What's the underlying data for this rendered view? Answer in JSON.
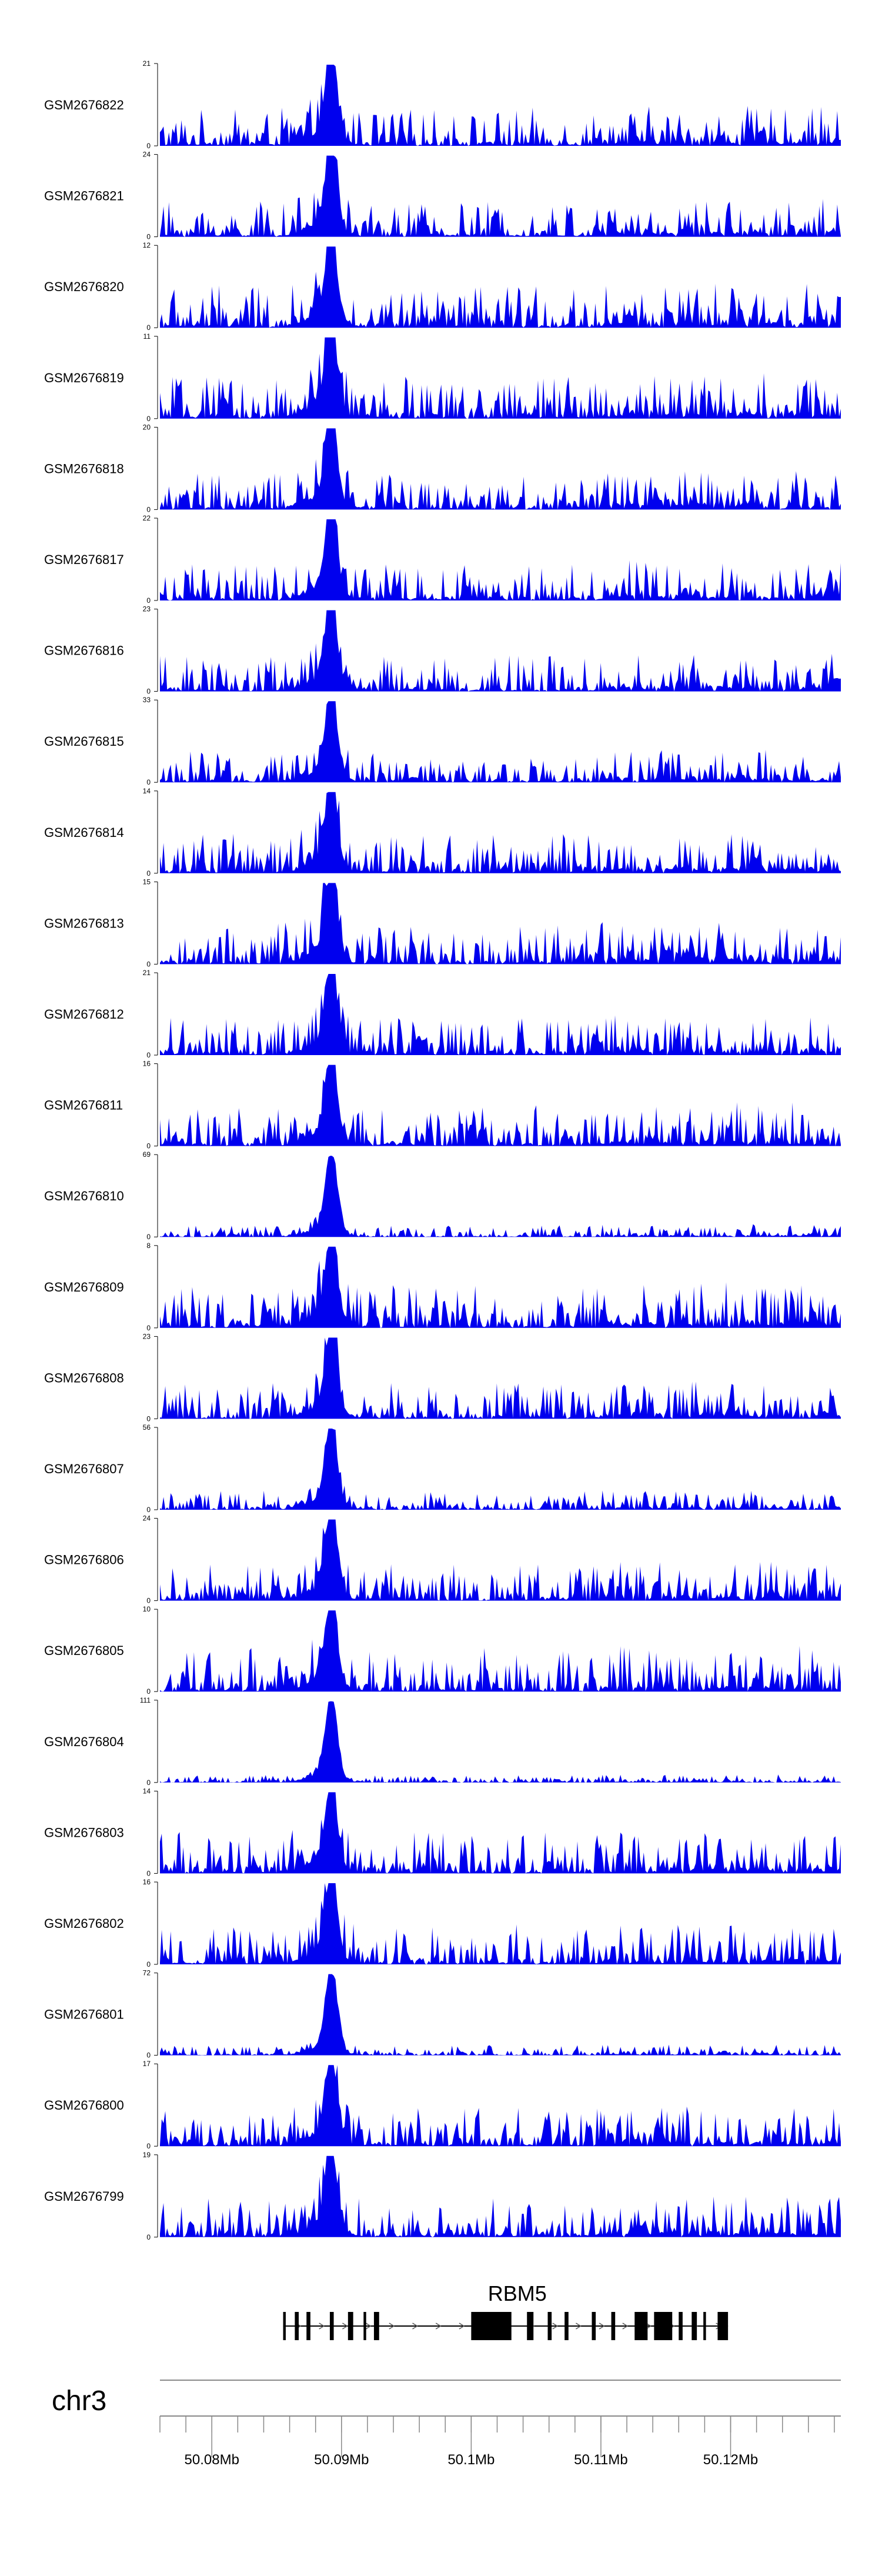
{
  "chart_data": {
    "type": "area",
    "title": "",
    "fill_color": "#0000ee",
    "xlim": [
      50.076,
      50.1285
    ],
    "x_unit": "Mb",
    "tracks": [
      {
        "name": "GSM2676822",
        "ymax": 21,
        "ymin": 0,
        "peak_label": 21
      },
      {
        "name": "GSM2676821",
        "ymax": 24,
        "ymin": 0,
        "peak_label": 24
      },
      {
        "name": "GSM2676820",
        "ymax": 12,
        "ymin": 0,
        "peak_label": 12
      },
      {
        "name": "GSM2676819",
        "ymax": 11,
        "ymin": 0,
        "peak_label": 11
      },
      {
        "name": "GSM2676818",
        "ymax": 20,
        "ymin": 0,
        "peak_label": 20
      },
      {
        "name": "GSM2676817",
        "ymax": 22,
        "ymin": 0,
        "peak_label": 22
      },
      {
        "name": "GSM2676816",
        "ymax": 23,
        "ymin": 0,
        "peak_label": 23
      },
      {
        "name": "GSM2676815",
        "ymax": 33,
        "ymin": 0,
        "peak_label": 33
      },
      {
        "name": "GSM2676814",
        "ymax": 14,
        "ymin": 0,
        "peak_label": 14
      },
      {
        "name": "GSM2676813",
        "ymax": 15,
        "ymin": 0,
        "peak_label": 15
      },
      {
        "name": "GSM2676812",
        "ymax": 21,
        "ymin": 0,
        "peak_label": 21
      },
      {
        "name": "GSM2676811",
        "ymax": 16,
        "ymin": 0,
        "peak_label": 16
      },
      {
        "name": "GSM2676810",
        "ymax": 69,
        "ymin": 0,
        "peak_label": 69
      },
      {
        "name": "GSM2676809",
        "ymax": 8,
        "ymin": 0,
        "peak_label": 8
      },
      {
        "name": "GSM2676808",
        "ymax": 23,
        "ymin": 0,
        "peak_label": 23
      },
      {
        "name": "GSM2676807",
        "ymax": 56,
        "ymin": 0,
        "peak_label": 56
      },
      {
        "name": "GSM2676806",
        "ymax": 24,
        "ymin": 0,
        "peak_label": 24
      },
      {
        "name": "GSM2676805",
        "ymax": 10,
        "ymin": 0,
        "peak_label": 10
      },
      {
        "name": "GSM2676804",
        "ymax": 111,
        "ymin": 0,
        "peak_label": 111
      },
      {
        "name": "GSM2676803",
        "ymax": 14,
        "ymin": 0,
        "peak_label": 14
      },
      {
        "name": "GSM2676802",
        "ymax": 16,
        "ymin": 0,
        "peak_label": 16
      },
      {
        "name": "GSM2676801",
        "ymax": 72,
        "ymin": 0,
        "peak_label": 72
      },
      {
        "name": "GSM2676800",
        "ymax": 17,
        "ymin": 0,
        "peak_label": 17
      },
      {
        "name": "GSM2676799",
        "ymax": 19,
        "ymin": 0,
        "peak_label": 19
      }
    ],
    "gene": {
      "name": "RBM5",
      "start": 50.0855,
      "end": 50.1198,
      "exons": [
        [
          50.0855,
          50.0857
        ],
        [
          50.0864,
          50.0867
        ],
        [
          50.0873,
          50.0876
        ],
        [
          50.0891,
          50.0894
        ],
        [
          50.0905,
          50.0909
        ],
        [
          50.0917,
          50.0919
        ],
        [
          50.0925,
          50.0929
        ],
        [
          50.1,
          50.1031
        ],
        [
          50.1043,
          50.1048
        ],
        [
          50.1059,
          50.1062
        ],
        [
          50.1072,
          50.1075
        ],
        [
          50.1093,
          50.1096
        ],
        [
          50.1108,
          50.1111
        ],
        [
          50.1126,
          50.1136
        ],
        [
          50.1141,
          50.1155
        ],
        [
          50.116,
          50.1163
        ],
        [
          50.117,
          50.1174
        ],
        [
          50.1179,
          50.1181
        ],
        [
          50.119,
          50.1198
        ]
      ]
    },
    "chromosome": "chr3",
    "axis": {
      "major_ticks": [
        50.08,
        50.09,
        50.1,
        50.11,
        50.12
      ],
      "major_labels": [
        "50.08Mb",
        "50.09Mb",
        "50.1Mb",
        "50.11Mb",
        "50.12Mb"
      ],
      "minor_step": 0.002
    }
  }
}
